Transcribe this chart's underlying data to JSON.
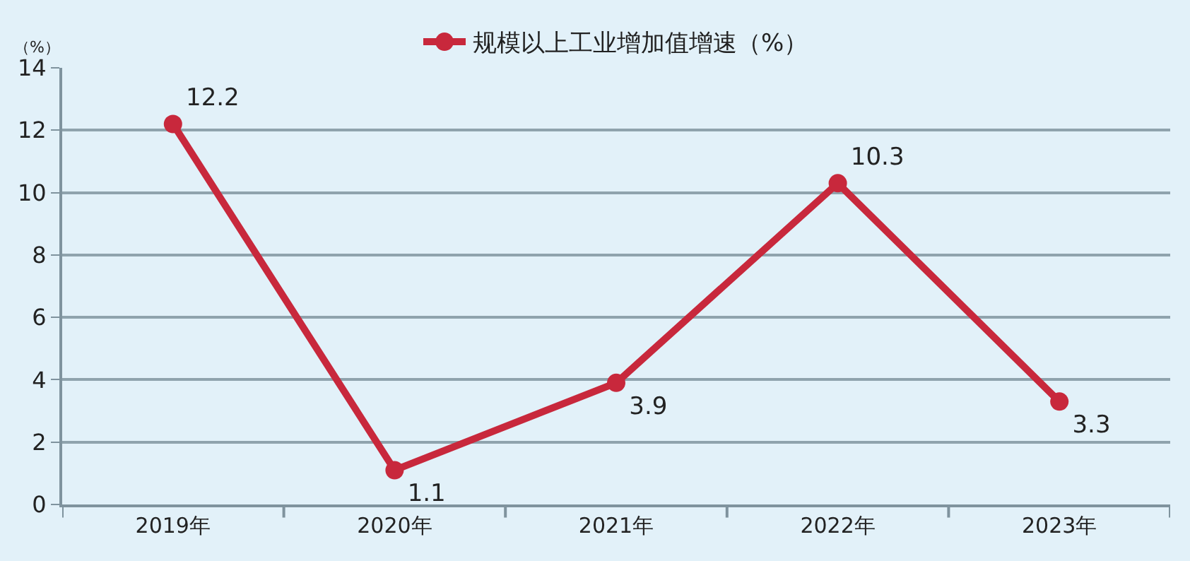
{
  "chart_data": {
    "type": "line",
    "ylabel": "（%）",
    "categories": [
      "2019年",
      "2020年",
      "2021年",
      "2022年",
      "2023年"
    ],
    "series": [
      {
        "name": "规模以上工业增加值增速（%）",
        "color": "#c8283c",
        "values": [
          12.2,
          1.1,
          3.9,
          10.3,
          3.3
        ]
      }
    ],
    "ylim": [
      0,
      14
    ],
    "yticks": [
      0,
      2,
      4,
      6,
      8,
      10,
      12,
      14
    ],
    "grid": "y",
    "legend": "top",
    "marker": "circle",
    "line_style": "solid",
    "data_labels": true
  }
}
